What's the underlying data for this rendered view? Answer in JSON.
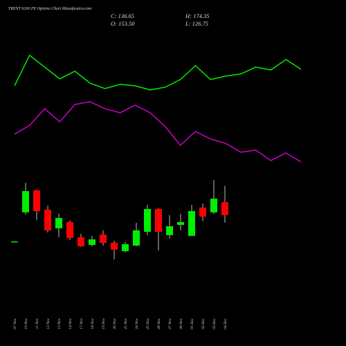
{
  "chart_data": [
    {
      "type": "line",
      "ylim": [
        0,
        100
      ],
      "series": [
        {
          "color": "#00ee00",
          "values": [
            66.3,
            89.5,
            80.5,
            71.6,
            77.4,
            68.4,
            64.2,
            67.4,
            66.3,
            63.2,
            65.3,
            71.1,
            81.6,
            71.1,
            73.7,
            75.3,
            80.5,
            78.4,
            86.3,
            78.9
          ]
        },
        {
          "color": "#cc00cc",
          "values": [
            29.5,
            36.3,
            48.9,
            38.9,
            52.1,
            54.2,
            48.9,
            45.8,
            51.6,
            45.8,
            35.3,
            21.1,
            31.6,
            25.8,
            22.6,
            15.8,
            17.4,
            9.5,
            15.3,
            8.4
          ]
        }
      ]
    },
    {
      "type": "candlestick",
      "title": "TRENT 6200 PE Options Chart Munafasutra.com",
      "annotations": [
        "C: 136.65",
        "H: 174.35",
        "O: 153.50",
        "L: 126.75"
      ],
      "ylim": [
        75,
        191
      ],
      "up_color": "#00ee00",
      "down_color": "#ff0000",
      "categories": [
        "07 Nov",
        "10 Nov",
        "11 Nov",
        "12 Nov",
        "13 Nov",
        "14 Nov",
        "17 Nov",
        "18 Nov",
        "19 Nov",
        "20 Nov",
        "21 Nov",
        "24 Nov",
        "25 Nov",
        "26 Nov",
        "27 Nov",
        "28 Nov",
        "01 Dec",
        "02 Dec",
        "03 Dec",
        "04 Dec"
      ],
      "open": [
        102.8,
        140.2,
        168.6,
        143.7,
        119.7,
        127.7,
        108.1,
        98.3,
        111.7,
        101.0,
        90.3,
        97.4,
        115.2,
        144.6,
        110.8,
        124.1,
        109.9,
        146.4,
        140.2,
        153.5
      ],
      "high": [
        103.2,
        178.4,
        169.5,
        149.0,
        138.4,
        129.5,
        112.6,
        109.9,
        117.0,
        103.7,
        101.9,
        126.8,
        149.9,
        145.5,
        136.6,
        138.4,
        149.9,
        151.7,
        182.0,
        174.35
      ],
      "low": [
        102.5,
        137.5,
        130.4,
        114.3,
        108.1,
        104.5,
        95.7,
        96.5,
        97.4,
        79.6,
        88.5,
        96.5,
        110.8,
        91.2,
        106.3,
        117.0,
        109.9,
        128.6,
        138.4,
        126.75
      ],
      "close": [
        102.8,
        167.7,
        141.9,
        117.0,
        133.0,
        107.2,
        96.5,
        105.4,
        101.0,
        92.1,
        99.2,
        117.0,
        144.6,
        115.2,
        122.4,
        127.7,
        141.9,
        134.8,
        157.9,
        136.65
      ]
    }
  ]
}
